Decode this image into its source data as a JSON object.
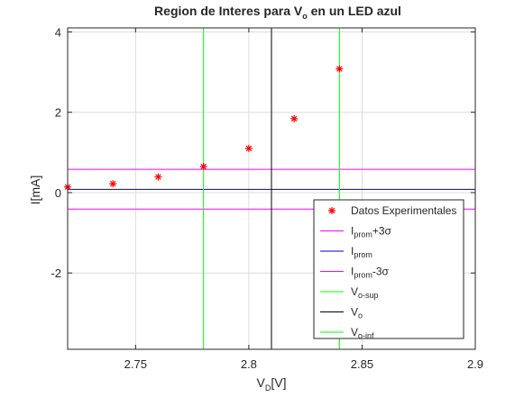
{
  "chart_data": {
    "type": "scatter",
    "title": {
      "prefix": "Region de Interes para V",
      "subscript": "o",
      "suffix": " en un LED azul"
    },
    "xlabel": {
      "base": "V",
      "subscript": "D",
      "suffix": "[V]"
    },
    "ylabel": "I[mA]",
    "xlim": [
      2.72,
      2.9
    ],
    "ylim": [
      -3.9,
      4.1
    ],
    "xticks": [
      {
        "value": 2.75,
        "label": "2.75"
      },
      {
        "value": 2.8,
        "label": "2.8"
      },
      {
        "value": 2.85,
        "label": "2.85"
      },
      {
        "value": 2.9,
        "label": "2.9"
      }
    ],
    "yticks": [
      {
        "value": -2,
        "label": "-2"
      },
      {
        "value": 0,
        "label": "0"
      },
      {
        "value": 2,
        "label": "2"
      },
      {
        "value": 4,
        "label": "4"
      }
    ],
    "grid": true,
    "legend_position": "bottom-right",
    "series": [
      {
        "name": "Datos Experimentales",
        "kind": "points",
        "marker": "asterisk",
        "color": "#ff0000",
        "x": [
          2.72,
          2.74,
          2.76,
          2.78,
          2.8,
          2.82,
          2.84
        ],
        "y": [
          0.14,
          0.22,
          0.39,
          0.65,
          1.1,
          1.84,
          3.08
        ]
      },
      {
        "name": {
          "base": "I",
          "subscript": "prom",
          "suffix": "+3σ"
        },
        "kind": "hline",
        "value": 0.58,
        "color": "#ff00ff"
      },
      {
        "name": {
          "base": "I",
          "subscript": "prom",
          "suffix": ""
        },
        "kind": "hline",
        "value": 0.08,
        "color": "#0000cc"
      },
      {
        "name": {
          "base": "I",
          "subscript": "prom",
          "suffix": "-3σ"
        },
        "kind": "hline",
        "value": -0.41,
        "color": "#ff00ff"
      },
      {
        "name": {
          "base": "V",
          "subscript": "o-sup",
          "suffix": ""
        },
        "kind": "vline",
        "value": 2.78,
        "color": "#00ff00"
      },
      {
        "name": {
          "base": "V",
          "subscript": "o",
          "suffix": ""
        },
        "kind": "vline",
        "value": 2.81,
        "color": "#000000"
      },
      {
        "name": {
          "base": "V",
          "subscript": "o-inf",
          "suffix": ""
        },
        "kind": "vline",
        "value": 2.84,
        "color": "#00ff00"
      }
    ]
  }
}
